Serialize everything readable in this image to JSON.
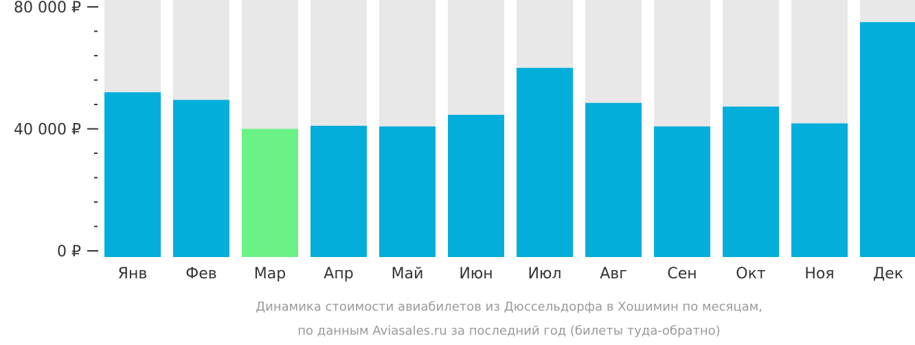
{
  "chart_data": {
    "type": "bar",
    "categories": [
      "Янв",
      "Фев",
      "Мар",
      "Апр",
      "Май",
      "Июн",
      "Июл",
      "Авг",
      "Сен",
      "Окт",
      "Ноя",
      "Дек"
    ],
    "values": [
      52000,
      49500,
      40000,
      41000,
      40800,
      44600,
      60000,
      48500,
      40800,
      47300,
      41800,
      75000
    ],
    "highlight_index": 2,
    "ylim": [
      0,
      82000
    ],
    "yticks": [
      {
        "value": 0,
        "label": "0 ₽"
      },
      {
        "value": 40000,
        "label": "40 000 ₽"
      },
      {
        "value": 80000,
        "label": "80 000 ₽"
      }
    ],
    "minor_tick_step": 8000,
    "colors": {
      "bar": "#03aedb",
      "highlight": "#6bf286",
      "background_bar": "#e8e8e8",
      "axis": "#333333"
    }
  },
  "caption": {
    "line1": "Динамика стоимости авиабилетов из Дюссельдорфа в Хошимин по месяцам,",
    "line2": "по данным Aviasales.ru за последний год (билеты туда-обратно)"
  }
}
